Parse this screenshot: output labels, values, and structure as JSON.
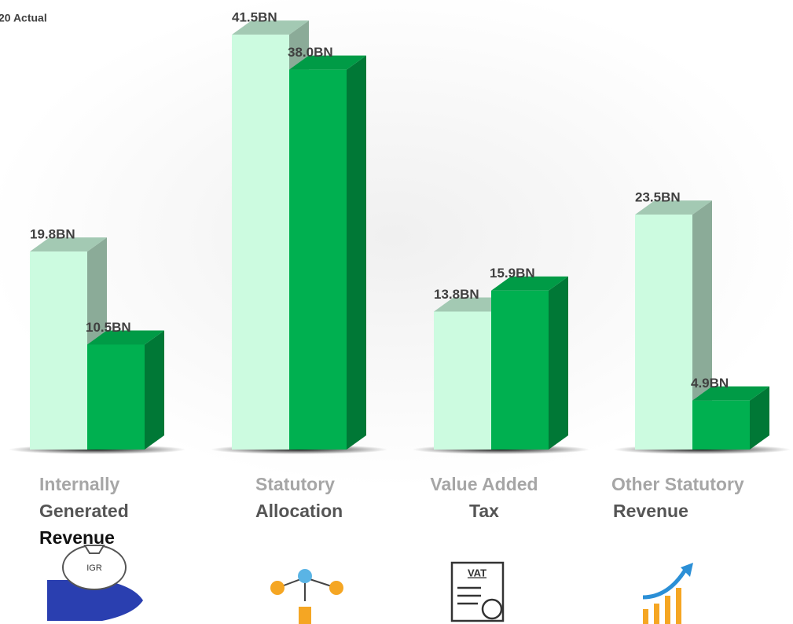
{
  "chart_data": {
    "type": "bar3d",
    "legend_text": "20 Actual",
    "categories": [
      [
        "Internally",
        "Generated",
        "Revenue"
      ],
      [
        "Statutory",
        "Allocation"
      ],
      [
        "Value Added",
        "Tax"
      ],
      [
        "Other Statutory",
        "Revenue"
      ]
    ],
    "series": [
      {
        "color": "#ccfbe0",
        "values": [
          19.8,
          41.5,
          13.8,
          23.5
        ],
        "value_labels": [
          "19.8BN",
          "41.5BN",
          "13.8BN",
          "23.5BN"
        ]
      },
      {
        "name": "20 Actual",
        "color": "#00b050",
        "values": [
          10.5,
          38.0,
          15.9,
          4.9
        ],
        "value_labels": [
          "10.5BN",
          "38.0BN",
          "15.9BN",
          "4.9BN"
        ]
      }
    ],
    "icons": {
      "igr": "IGR",
      "vat": "VAT"
    }
  }
}
